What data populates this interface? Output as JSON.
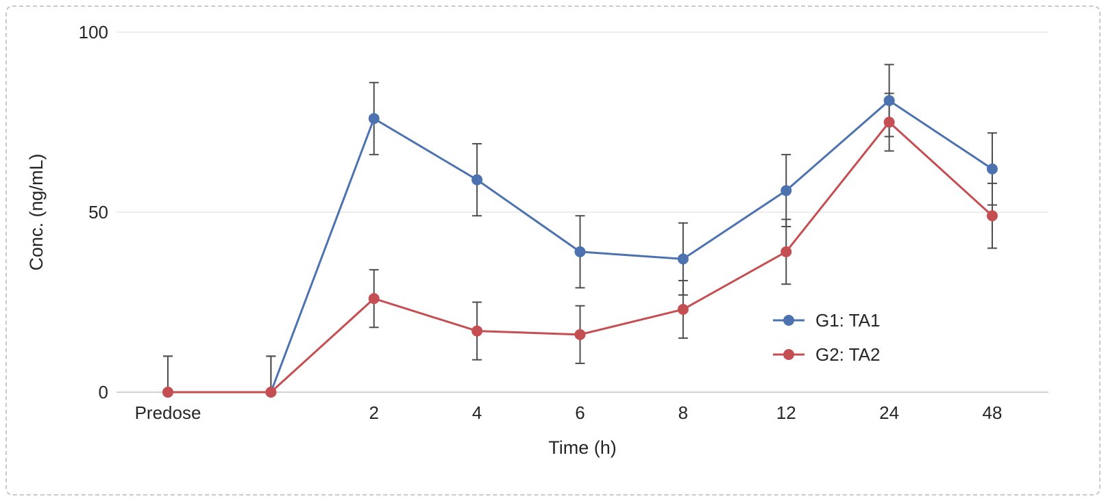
{
  "figure": {
    "background": "#ffffff",
    "border_color": "#c9c9c9"
  },
  "chart_data": {
    "type": "line",
    "title": "",
    "xlabel": "Time (h)",
    "ylabel": "Conc. (ng/mL)",
    "categories": [
      "Predose",
      "",
      "2",
      "4",
      "6",
      "8",
      "12",
      "24",
      "48"
    ],
    "ylim": [
      0,
      100
    ],
    "yticks": [
      0,
      50,
      100
    ],
    "grid": true,
    "legend_position": "inside-right",
    "error_bar_color": "#4d4d4d",
    "text_color": "#262626",
    "gridline_color": "#e7e7e7",
    "axis_line_color": "#c4c4c4",
    "series": [
      {
        "name": "G1: TA1",
        "color": "#4c72b0",
        "values": [
          0,
          0,
          76,
          59,
          39,
          37,
          56,
          81,
          62
        ],
        "errors": [
          10,
          10,
          10,
          10,
          10,
          10,
          10,
          10,
          10
        ]
      },
      {
        "name": "G2: TA2",
        "color": "#c44e52",
        "values": [
          0,
          0,
          26,
          17,
          16,
          23,
          39,
          75,
          49
        ],
        "errors": [
          10,
          10,
          8,
          8,
          8,
          8,
          9,
          8,
          9
        ]
      }
    ]
  }
}
